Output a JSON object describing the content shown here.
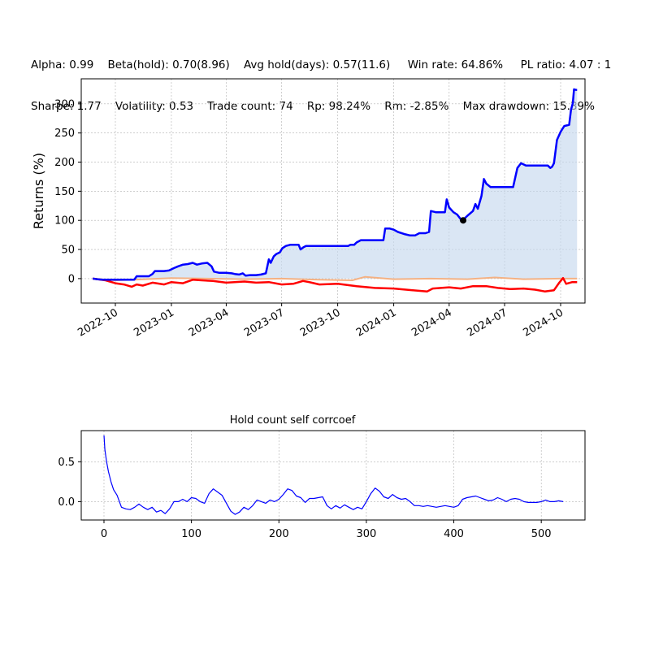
{
  "stats": {
    "row1": [
      "Alpha: 0.99",
      "Beta(hold): 0.70(8.96)",
      "Avg hold(days): 0.57(11.6)",
      "Win rate: 64.86%",
      "PL ratio: 4.07 : 1"
    ],
    "row2": [
      "Sharpe: 1.77",
      "Volatility: 0.53",
      "Trade count: 74",
      "Rp: 98.24%",
      "Rm: -2.85%",
      "Max drawdown: 15.39%"
    ]
  },
  "colors": {
    "strategy": "#0000ff",
    "benchmark": "#f4b183",
    "drawdown": "#ff0000",
    "fill": "#c6d9ee",
    "marker": "#000000",
    "grid": "#b0b0b0",
    "acf": "#0000ff"
  },
  "chart_data": [
    {
      "type": "line",
      "ylabel": "Returns (%)",
      "xlabel": "",
      "title": "",
      "x_tick_labels": [
        "2022-10",
        "2023-01",
        "2023-04",
        "2023-07",
        "2023-10",
        "2024-01",
        "2024-04",
        "2024-07",
        "2024-10"
      ],
      "y_ticks": [
        0,
        50,
        100,
        150,
        200,
        250,
        300
      ],
      "ylim": [
        -42,
        343
      ],
      "xlim": [
        "2022-08-06",
        "2024-11-10"
      ],
      "grid": true,
      "series": [
        {
          "role": "strategy",
          "fill_to_zero": true,
          "points": [
            [
              "2022-08-25",
              0
            ],
            [
              "2022-09-01",
              -1
            ],
            [
              "2022-09-10",
              -2
            ],
            [
              "2022-10-01",
              -2
            ],
            [
              "2022-10-20",
              -2
            ],
            [
              "2022-11-01",
              -2
            ],
            [
              "2022-11-05",
              4
            ],
            [
              "2022-11-15",
              4
            ],
            [
              "2022-11-25",
              4
            ],
            [
              "2022-12-01",
              8
            ],
            [
              "2022-12-05",
              13
            ],
            [
              "2022-12-20",
              13
            ],
            [
              "2022-12-28",
              14
            ],
            [
              "2023-01-05",
              18
            ],
            [
              "2023-01-12",
              21
            ],
            [
              "2023-01-20",
              24
            ],
            [
              "2023-01-28",
              25
            ],
            [
              "2023-02-05",
              27
            ],
            [
              "2023-02-12",
              24
            ],
            [
              "2023-02-20",
              26
            ],
            [
              "2023-03-01",
              27
            ],
            [
              "2023-03-08",
              21
            ],
            [
              "2023-03-12",
              12
            ],
            [
              "2023-03-20",
              10
            ],
            [
              "2023-04-01",
              10
            ],
            [
              "2023-04-10",
              9
            ],
            [
              "2023-04-15",
              8
            ],
            [
              "2023-04-22",
              7
            ],
            [
              "2023-04-28",
              9
            ],
            [
              "2023-05-03",
              5
            ],
            [
              "2023-05-10",
              6
            ],
            [
              "2023-05-20",
              6
            ],
            [
              "2023-05-28",
              7
            ],
            [
              "2023-06-05",
              9
            ],
            [
              "2023-06-10",
              33
            ],
            [
              "2023-06-13",
              27
            ],
            [
              "2023-06-18",
              38
            ],
            [
              "2023-06-22",
              42
            ],
            [
              "2023-06-28",
              45
            ],
            [
              "2023-07-02",
              52
            ],
            [
              "2023-07-08",
              56
            ],
            [
              "2023-07-15",
              58
            ],
            [
              "2023-07-22",
              58
            ],
            [
              "2023-07-29",
              58
            ],
            [
              "2023-08-01",
              50
            ],
            [
              "2023-08-06",
              54
            ],
            [
              "2023-08-10",
              56
            ],
            [
              "2023-08-20",
              56
            ],
            [
              "2023-09-01",
              56
            ],
            [
              "2023-10-01",
              56
            ],
            [
              "2023-10-18",
              56
            ],
            [
              "2023-10-22",
              58
            ],
            [
              "2023-10-28",
              58
            ],
            [
              "2023-11-01",
              62
            ],
            [
              "2023-11-08",
              66
            ],
            [
              "2023-12-01",
              66
            ],
            [
              "2023-12-15",
              66
            ],
            [
              "2023-12-18",
              86
            ],
            [
              "2023-12-25",
              86
            ],
            [
              "2024-01-01",
              84
            ],
            [
              "2024-01-08",
              80
            ],
            [
              "2024-01-20",
              76
            ],
            [
              "2024-01-28",
              74
            ],
            [
              "2024-02-05",
              74
            ],
            [
              "2024-02-12",
              78
            ],
            [
              "2024-02-22",
              78
            ],
            [
              "2024-02-28",
              80
            ],
            [
              "2024-03-02",
              116
            ],
            [
              "2024-03-10",
              114
            ],
            [
              "2024-03-25",
              114
            ],
            [
              "2024-03-28",
              136
            ],
            [
              "2024-04-01",
              122
            ],
            [
              "2024-04-08",
              114
            ],
            [
              "2024-04-14",
              110
            ],
            [
              "2024-04-20",
              102
            ],
            [
              "2024-04-24",
              101
            ],
            [
              "2024-05-01",
              108
            ],
            [
              "2024-05-10",
              116
            ],
            [
              "2024-05-14",
              128
            ],
            [
              "2024-05-18",
              120
            ],
            [
              "2024-05-24",
              142
            ],
            [
              "2024-05-28",
              171
            ],
            [
              "2024-06-01",
              163
            ],
            [
              "2024-06-08",
              157
            ],
            [
              "2024-06-20",
              157
            ],
            [
              "2024-07-01",
              157
            ],
            [
              "2024-07-15",
              157
            ],
            [
              "2024-07-22",
              190
            ],
            [
              "2024-07-28",
              198
            ],
            [
              "2024-08-05",
              194
            ],
            [
              "2024-08-20",
              194
            ],
            [
              "2024-09-01",
              194
            ],
            [
              "2024-09-10",
              194
            ],
            [
              "2024-09-14",
              190
            ],
            [
              "2024-09-17",
              192
            ],
            [
              "2024-09-20",
              198
            ],
            [
              "2024-09-25",
              238
            ],
            [
              "2024-10-01",
              252
            ],
            [
              "2024-10-07",
              262
            ],
            [
              "2024-10-15",
              264
            ],
            [
              "2024-10-18",
              290
            ],
            [
              "2024-10-21",
              301
            ],
            [
              "2024-10-23",
              325
            ],
            [
              "2024-10-26",
              324
            ],
            [
              "2024-10-28",
              324
            ]
          ]
        },
        {
          "role": "benchmark",
          "points": [
            [
              "2022-08-25",
              0
            ],
            [
              "2022-10-01",
              -3
            ],
            [
              "2022-11-01",
              -2
            ],
            [
              "2023-01-01",
              1
            ],
            [
              "2023-03-01",
              0
            ],
            [
              "2023-05-01",
              -1
            ],
            [
              "2023-07-01",
              0
            ],
            [
              "2023-09-01",
              -2
            ],
            [
              "2023-10-25",
              -3
            ],
            [
              "2023-11-15",
              3
            ],
            [
              "2024-01-01",
              -1
            ],
            [
              "2024-03-01",
              0
            ],
            [
              "2024-05-01",
              -1
            ],
            [
              "2024-06-15",
              2
            ],
            [
              "2024-08-01",
              -1
            ],
            [
              "2024-10-01",
              0
            ],
            [
              "2024-10-28",
              0
            ]
          ]
        },
        {
          "role": "drawdown",
          "points": [
            [
              "2022-08-25",
              0
            ],
            [
              "2022-09-15",
              -3
            ],
            [
              "2022-10-01",
              -8
            ],
            [
              "2022-10-15",
              -10
            ],
            [
              "2022-10-28",
              -14
            ],
            [
              "2022-11-05",
              -10
            ],
            [
              "2022-11-15",
              -12
            ],
            [
              "2022-12-01",
              -7
            ],
            [
              "2022-12-20",
              -10
            ],
            [
              "2023-01-01",
              -6
            ],
            [
              "2023-01-20",
              -8
            ],
            [
              "2023-02-05",
              -2
            ],
            [
              "2023-02-20",
              -3
            ],
            [
              "2023-03-10",
              -4
            ],
            [
              "2023-04-01",
              -7
            ],
            [
              "2023-05-01",
              -5
            ],
            [
              "2023-05-20",
              -7
            ],
            [
              "2023-06-10",
              -6
            ],
            [
              "2023-07-01",
              -10
            ],
            [
              "2023-07-20",
              -9
            ],
            [
              "2023-08-05",
              -4
            ],
            [
              "2023-08-15",
              -6
            ],
            [
              "2023-09-01",
              -10
            ],
            [
              "2023-10-01",
              -9
            ],
            [
              "2023-11-01",
              -13
            ],
            [
              "2023-12-01",
              -16
            ],
            [
              "2024-01-01",
              -17
            ],
            [
              "2024-02-01",
              -20
            ],
            [
              "2024-02-25",
              -22
            ],
            [
              "2024-03-05",
              -17
            ],
            [
              "2024-04-01",
              -15
            ],
            [
              "2024-04-20",
              -17
            ],
            [
              "2024-05-10",
              -13
            ],
            [
              "2024-06-01",
              -13
            ],
            [
              "2024-06-20",
              -16
            ],
            [
              "2024-07-10",
              -18
            ],
            [
              "2024-08-01",
              -17
            ],
            [
              "2024-08-20",
              -19
            ],
            [
              "2024-09-05",
              -22
            ],
            [
              "2024-09-20",
              -20
            ],
            [
              "2024-09-28",
              -8
            ],
            [
              "2024-10-05",
              1
            ],
            [
              "2024-10-10",
              -9
            ],
            [
              "2024-10-20",
              -6
            ],
            [
              "2024-10-28",
              -6
            ]
          ]
        }
      ],
      "marker": {
        "date": "2024-04-24",
        "value": 100
      }
    },
    {
      "type": "line",
      "title": "Hold count self corrcoef",
      "xlabel": "",
      "ylabel": "",
      "x_ticks": [
        0,
        100,
        200,
        300,
        400,
        500
      ],
      "y_ticks": [
        0.0,
        0.5
      ],
      "y_tick_labels": [
        "0.0",
        "0.5"
      ],
      "xlim": [
        -26,
        550
      ],
      "ylim": [
        -0.23,
        0.89
      ],
      "grid": true,
      "series": [
        {
          "role": "acf",
          "x": [
            0,
            1,
            3,
            5,
            8,
            11,
            15,
            20,
            25,
            30,
            35,
            40,
            45,
            50,
            55,
            60,
            65,
            70,
            75,
            80,
            85,
            90,
            95,
            100,
            105,
            110,
            115,
            120,
            125,
            130,
            135,
            140,
            145,
            150,
            155,
            160,
            165,
            170,
            175,
            180,
            185,
            190,
            195,
            200,
            205,
            210,
            215,
            220,
            225,
            230,
            235,
            240,
            245,
            250,
            255,
            260,
            265,
            270,
            275,
            280,
            285,
            290,
            295,
            300,
            305,
            310,
            315,
            320,
            325,
            330,
            335,
            340,
            345,
            350,
            355,
            360,
            365,
            370,
            375,
            380,
            385,
            390,
            395,
            400,
            405,
            410,
            415,
            420,
            425,
            430,
            435,
            440,
            445,
            450,
            455,
            460,
            465,
            470,
            475,
            480,
            485,
            490,
            495,
            500,
            505,
            510,
            515,
            520,
            525
          ],
          "y": [
            0.83,
            0.65,
            0.5,
            0.38,
            0.25,
            0.15,
            0.08,
            -0.07,
            -0.09,
            -0.1,
            -0.07,
            -0.03,
            -0.07,
            -0.1,
            -0.07,
            -0.13,
            -0.11,
            -0.15,
            -0.09,
            0.0,
            0.0,
            0.03,
            0.0,
            0.05,
            0.04,
            0.0,
            -0.02,
            0.1,
            0.16,
            0.12,
            0.08,
            -0.02,
            -0.12,
            -0.16,
            -0.13,
            -0.07,
            -0.1,
            -0.05,
            0.02,
            0.0,
            -0.02,
            0.02,
            0.0,
            0.03,
            0.09,
            0.16,
            0.14,
            0.07,
            0.05,
            -0.01,
            0.04,
            0.04,
            0.05,
            0.06,
            -0.05,
            -0.09,
            -0.05,
            -0.08,
            -0.04,
            -0.07,
            -0.1,
            -0.07,
            -0.09,
            0.0,
            0.1,
            0.17,
            0.13,
            0.06,
            0.04,
            0.09,
            0.05,
            0.03,
            0.04,
            0.0,
            -0.05,
            -0.05,
            -0.06,
            -0.05,
            -0.06,
            -0.07,
            -0.06,
            -0.05,
            -0.06,
            -0.07,
            -0.05,
            0.03,
            0.05,
            0.06,
            0.07,
            0.05,
            0.03,
            0.01,
            0.02,
            0.05,
            0.03,
            0.0,
            0.03,
            0.04,
            0.03,
            0.0,
            -0.01,
            -0.01,
            -0.01,
            0.0,
            0.02,
            0.0,
            0.0,
            0.01,
            0.0
          ]
        }
      ]
    }
  ]
}
